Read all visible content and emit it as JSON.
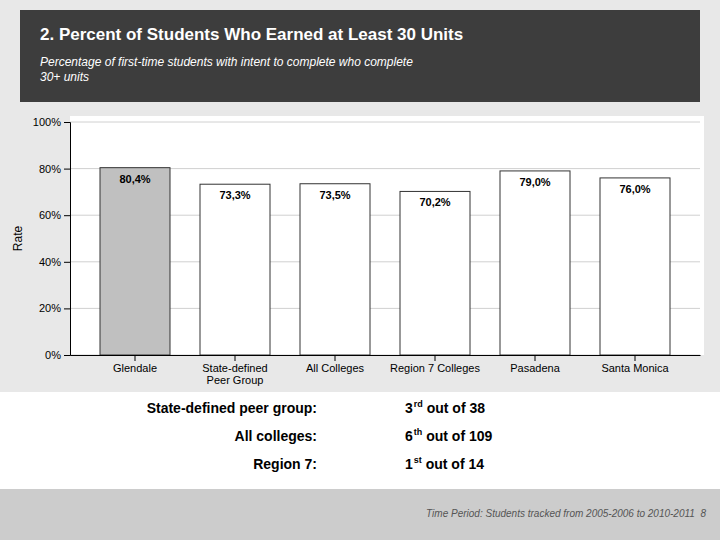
{
  "chart_data": {
    "type": "bar",
    "title": "2. Percent of Students Who Earned at Least 30 Units",
    "subtitle": "Percentage of first-time students with intent to complete who complete\n30+ units",
    "categories": [
      "Glendale",
      "State-defined\nPeer Group",
      "All Colleges",
      "Region 7 Colleges",
      "Pasadena",
      "Santa Monica"
    ],
    "values": [
      80.4,
      73.3,
      73.5,
      70.2,
      79.0,
      76.0
    ],
    "value_labels": [
      "80,4%",
      "73,3%",
      "73,5%",
      "70,2%",
      "79,0%",
      "76,0%"
    ],
    "data_labels": true,
    "colors": [
      "#c0c0c0",
      "#ffffff",
      "#ffffff",
      "#ffffff",
      "#ffffff",
      "#ffffff"
    ],
    "ylabel": "Rate",
    "ylim": [
      0,
      100
    ],
    "yticks": [
      {
        "value": 0,
        "label": "0%"
      },
      {
        "value": 20,
        "label": "20%"
      },
      {
        "value": 40,
        "label": "40%"
      },
      {
        "value": 60,
        "label": "60%"
      },
      {
        "value": 80,
        "label": "80%"
      },
      {
        "value": 100,
        "label": "100%"
      }
    ],
    "grid": true,
    "annotations": [
      {
        "label": "State-defined peer group:",
        "rank": "3",
        "ordinal": "rd",
        "text": " out of 38"
      },
      {
        "label": "All colleges:",
        "rank": "6",
        "ordinal": "th",
        "text": " out of 109"
      },
      {
        "label": "Region 7:",
        "rank": "1",
        "ordinal": "st",
        "text": " out of 14"
      }
    ],
    "footer": "Time Period: Students tracked from 2005-2006 to 2010-2011  8"
  }
}
